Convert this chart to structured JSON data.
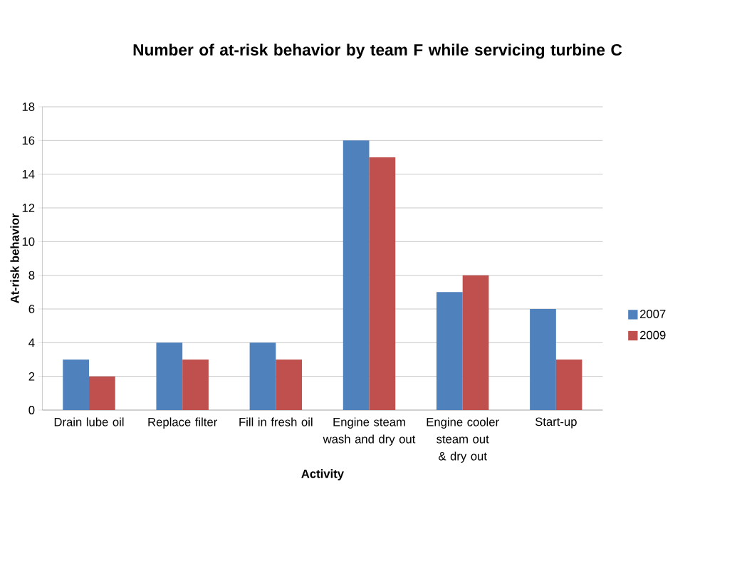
{
  "chart_data": {
    "type": "bar",
    "title": "Number of at-risk behavior by team F while servicing turbine C",
    "xlabel": "Activity",
    "ylabel": "At-risk behavior",
    "categories": [
      "Drain lube oil",
      "Replace filter",
      "Fill in fresh oil",
      "Engine steam wash and dry out",
      "Engine cooler steam out & dry out",
      "Start-up"
    ],
    "series": [
      {
        "name": "2007",
        "color": "#4f81bd",
        "values": [
          3,
          4,
          4,
          16,
          7,
          6
        ]
      },
      {
        "name": "2009",
        "color": "#c0504d",
        "values": [
          2,
          3,
          3,
          15,
          8,
          3
        ]
      }
    ],
    "ylim": [
      0,
      18
    ],
    "yticks": [
      0,
      2,
      4,
      6,
      8,
      10,
      12,
      14,
      16,
      18
    ],
    "grid": "y",
    "legend": "right"
  }
}
